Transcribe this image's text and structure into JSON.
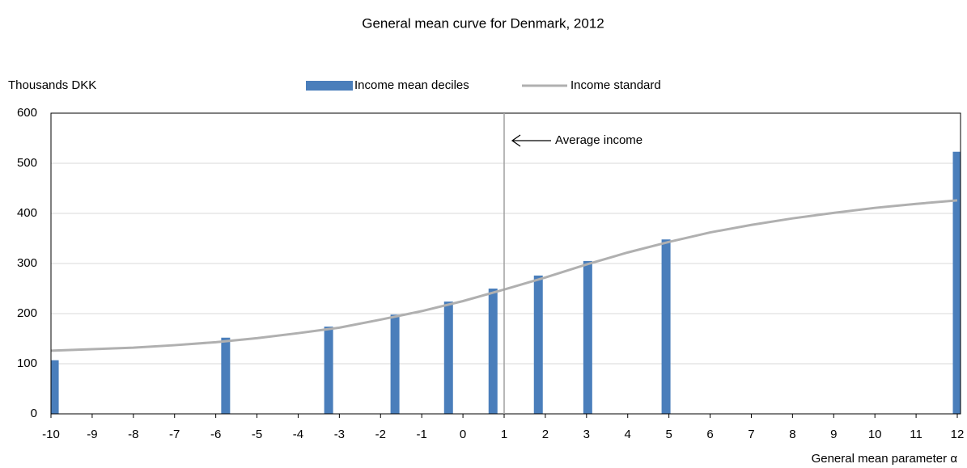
{
  "chart_data": {
    "type": "bar-line",
    "title": "General mean curve for Denmark, 2012",
    "y_label": "Thousands DKK",
    "x_label": "General mean parameter α",
    "xlim": [
      -10,
      12
    ],
    "xticks": [
      -10,
      -9,
      -8,
      -7,
      -6,
      -5,
      -4,
      -3,
      -2,
      -1,
      0,
      1,
      2,
      3,
      4,
      5,
      6,
      7,
      8,
      9,
      10,
      11,
      12
    ],
    "ylim": [
      0,
      600
    ],
    "yticks": [
      0,
      100,
      200,
      300,
      400,
      500,
      600
    ],
    "grid": true,
    "annotation": {
      "text": "Average income",
      "x": 1
    },
    "series": [
      {
        "name": "Income mean deciles",
        "kind": "bar",
        "color": "#4a7ebb",
        "x": [
          -9.92,
          -5.76,
          -3.26,
          -1.65,
          -0.35,
          0.73,
          1.83,
          3.03,
          4.93,
          12
        ],
        "values": [
          107,
          152,
          174,
          198,
          224,
          250,
          276,
          305,
          348,
          523
        ]
      },
      {
        "name": "Income standard",
        "kind": "line",
        "color": "#b0b0b0",
        "x": [
          -10,
          -9,
          -8,
          -7,
          -6,
          -5,
          -4,
          -3,
          -2,
          -1,
          0,
          1,
          2,
          3,
          4,
          5,
          6,
          7,
          8,
          9,
          10,
          11,
          12
        ],
        "values": [
          126,
          129,
          132,
          137,
          143,
          151,
          161,
          172,
          188,
          205,
          225,
          248,
          272,
          298,
          322,
          343,
          362,
          377,
          390,
          401,
          411,
          419,
          426
        ]
      }
    ]
  }
}
